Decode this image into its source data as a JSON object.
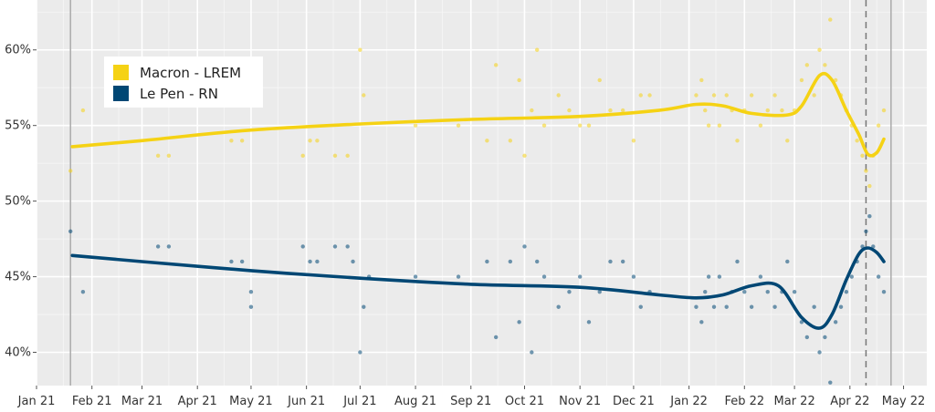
{
  "chart_data": {
    "type": "line",
    "title": "",
    "xlabel": "",
    "ylabel": "",
    "x_ticks": [
      "Jan 21",
      "Feb 21",
      "Mar 21",
      "Apr 21",
      "May 21",
      "Jun 21",
      "Jul 21",
      "Aug 21",
      "Sep 21",
      "Oct 21",
      "Nov 21",
      "Dec 21",
      "Jan 22",
      "Feb 22",
      "Mar 22",
      "Apr 22",
      "May 22"
    ],
    "xlim": [
      "2021-01-01",
      "2022-05-14"
    ],
    "y_ticks": [
      "40%",
      "45%",
      "50%",
      "55%",
      "60%"
    ],
    "ylim": [
      37.8,
      63.3
    ],
    "grid": true,
    "legend_position": "top-left",
    "series": [
      {
        "name": "Macron - LREM",
        "color": "#F5D214",
        "trend": [
          [
            "2021-01-21",
            53.6
          ],
          [
            "2021-03-01",
            54.0
          ],
          [
            "2021-05-01",
            54.7
          ],
          [
            "2021-07-01",
            55.1
          ],
          [
            "2021-09-01",
            55.4
          ],
          [
            "2021-11-01",
            55.6
          ],
          [
            "2021-12-15",
            56.0
          ],
          [
            "2022-01-05",
            56.4
          ],
          [
            "2022-01-20",
            56.3
          ],
          [
            "2022-02-05",
            55.8
          ],
          [
            "2022-02-25",
            55.7
          ],
          [
            "2022-03-05",
            56.3
          ],
          [
            "2022-03-15",
            58.3
          ],
          [
            "2022-03-22",
            58.0
          ],
          [
            "2022-03-30",
            56.0
          ],
          [
            "2022-04-06",
            54.4
          ],
          [
            "2022-04-11",
            53.1
          ],
          [
            "2022-04-16",
            53.2
          ],
          [
            "2022-04-20",
            54.1
          ]
        ],
        "polls": [
          [
            "2021-01-20",
            52
          ],
          [
            "2021-01-27",
            56
          ],
          [
            "2021-03-10",
            53
          ],
          [
            "2021-03-16",
            53
          ],
          [
            "2021-04-20",
            54
          ],
          [
            "2021-04-26",
            54
          ],
          [
            "2021-05-30",
            53
          ],
          [
            "2021-06-03",
            54
          ],
          [
            "2021-06-07",
            54
          ],
          [
            "2021-06-17",
            53
          ],
          [
            "2021-06-24",
            53
          ],
          [
            "2021-07-01",
            60
          ],
          [
            "2021-07-03",
            57
          ],
          [
            "2021-08-01",
            55
          ],
          [
            "2021-08-25",
            55
          ],
          [
            "2021-09-10",
            54
          ],
          [
            "2021-09-15",
            59
          ],
          [
            "2021-09-23",
            54
          ],
          [
            "2021-09-28",
            58
          ],
          [
            "2021-10-01",
            53
          ],
          [
            "2021-10-05",
            56
          ],
          [
            "2021-10-08",
            60
          ],
          [
            "2021-10-12",
            55
          ],
          [
            "2021-10-20",
            57
          ],
          [
            "2021-10-26",
            56
          ],
          [
            "2021-11-01",
            55
          ],
          [
            "2021-11-06",
            55
          ],
          [
            "2021-11-12",
            58
          ],
          [
            "2021-11-18",
            56
          ],
          [
            "2021-11-25",
            56
          ],
          [
            "2021-12-01",
            54
          ],
          [
            "2021-12-05",
            57
          ],
          [
            "2021-12-10",
            57
          ],
          [
            "2022-01-05",
            57
          ],
          [
            "2022-01-08",
            58
          ],
          [
            "2022-01-10",
            56
          ],
          [
            "2022-01-12",
            55
          ],
          [
            "2022-01-15",
            57
          ],
          [
            "2022-01-18",
            55
          ],
          [
            "2022-01-22",
            57
          ],
          [
            "2022-01-25",
            56
          ],
          [
            "2022-01-28",
            54
          ],
          [
            "2022-02-01",
            56
          ],
          [
            "2022-02-05",
            57
          ],
          [
            "2022-02-10",
            55
          ],
          [
            "2022-02-14",
            56
          ],
          [
            "2022-02-18",
            57
          ],
          [
            "2022-02-22",
            56
          ],
          [
            "2022-02-25",
            54
          ],
          [
            "2022-03-01",
            56
          ],
          [
            "2022-03-05",
            58
          ],
          [
            "2022-03-08",
            59
          ],
          [
            "2022-03-12",
            57
          ],
          [
            "2022-03-15",
            60
          ],
          [
            "2022-03-18",
            59
          ],
          [
            "2022-03-21",
            62
          ],
          [
            "2022-03-24",
            58
          ],
          [
            "2022-03-27",
            57
          ],
          [
            "2022-03-30",
            56
          ],
          [
            "2022-04-02",
            55
          ],
          [
            "2022-04-05",
            54
          ],
          [
            "2022-04-08",
            53
          ],
          [
            "2022-04-10",
            52
          ],
          [
            "2022-04-12",
            51
          ],
          [
            "2022-04-14",
            53
          ],
          [
            "2022-04-17",
            55
          ],
          [
            "2022-04-20",
            56
          ]
        ]
      },
      {
        "name": "Le Pen - RN",
        "color": "#004774",
        "trend": [
          [
            "2021-01-21",
            46.4
          ],
          [
            "2021-03-01",
            46.0
          ],
          [
            "2021-05-01",
            45.4
          ],
          [
            "2021-07-01",
            44.9
          ],
          [
            "2021-09-01",
            44.5
          ],
          [
            "2021-11-01",
            44.3
          ],
          [
            "2021-12-15",
            43.8
          ],
          [
            "2022-01-05",
            43.6
          ],
          [
            "2022-01-20",
            43.8
          ],
          [
            "2022-02-05",
            44.4
          ],
          [
            "2022-02-20",
            44.4
          ],
          [
            "2022-03-05",
            42.3
          ],
          [
            "2022-03-15",
            41.6
          ],
          [
            "2022-03-22",
            42.5
          ],
          [
            "2022-03-30",
            44.8
          ],
          [
            "2022-04-06",
            46.5
          ],
          [
            "2022-04-11",
            46.9
          ],
          [
            "2022-04-16",
            46.6
          ],
          [
            "2022-04-20",
            46.0
          ]
        ],
        "polls": [
          [
            "2021-01-20",
            48
          ],
          [
            "2021-01-27",
            44
          ],
          [
            "2021-03-10",
            47
          ],
          [
            "2021-03-16",
            47
          ],
          [
            "2021-04-20",
            46
          ],
          [
            "2021-04-26",
            46
          ],
          [
            "2021-05-01",
            44
          ],
          [
            "2021-05-01",
            43
          ],
          [
            "2021-05-30",
            47
          ],
          [
            "2021-06-03",
            46
          ],
          [
            "2021-06-07",
            46
          ],
          [
            "2021-06-17",
            47
          ],
          [
            "2021-06-24",
            47
          ],
          [
            "2021-06-27",
            46
          ],
          [
            "2021-07-01",
            40
          ],
          [
            "2021-07-03",
            43
          ],
          [
            "2021-07-06",
            45
          ],
          [
            "2021-08-01",
            45
          ],
          [
            "2021-08-25",
            45
          ],
          [
            "2021-09-10",
            46
          ],
          [
            "2021-09-15",
            41
          ],
          [
            "2021-09-23",
            46
          ],
          [
            "2021-09-28",
            42
          ],
          [
            "2021-10-01",
            47
          ],
          [
            "2021-10-05",
            40
          ],
          [
            "2021-10-08",
            46
          ],
          [
            "2021-10-12",
            45
          ],
          [
            "2021-10-20",
            43
          ],
          [
            "2021-10-26",
            44
          ],
          [
            "2021-11-01",
            45
          ],
          [
            "2021-11-06",
            42
          ],
          [
            "2021-11-12",
            44
          ],
          [
            "2021-11-18",
            46
          ],
          [
            "2021-11-25",
            46
          ],
          [
            "2021-12-01",
            45
          ],
          [
            "2021-12-05",
            43
          ],
          [
            "2021-12-10",
            44
          ],
          [
            "2022-01-05",
            43
          ],
          [
            "2022-01-08",
            42
          ],
          [
            "2022-01-10",
            44
          ],
          [
            "2022-01-12",
            45
          ],
          [
            "2022-01-15",
            43
          ],
          [
            "2022-01-18",
            45
          ],
          [
            "2022-01-22",
            43
          ],
          [
            "2022-01-25",
            44
          ],
          [
            "2022-01-28",
            46
          ],
          [
            "2022-02-01",
            44
          ],
          [
            "2022-02-05",
            43
          ],
          [
            "2022-02-10",
            45
          ],
          [
            "2022-02-14",
            44
          ],
          [
            "2022-02-18",
            43
          ],
          [
            "2022-02-22",
            44
          ],
          [
            "2022-02-25",
            46
          ],
          [
            "2022-03-01",
            44
          ],
          [
            "2022-03-05",
            42
          ],
          [
            "2022-03-08",
            41
          ],
          [
            "2022-03-12",
            43
          ],
          [
            "2022-03-15",
            40
          ],
          [
            "2022-03-18",
            41
          ],
          [
            "2022-03-21",
            38
          ],
          [
            "2022-03-24",
            42
          ],
          [
            "2022-03-27",
            43
          ],
          [
            "2022-03-30",
            44
          ],
          [
            "2022-04-02",
            45
          ],
          [
            "2022-04-05",
            46
          ],
          [
            "2022-04-08",
            47
          ],
          [
            "2022-04-10",
            48
          ],
          [
            "2022-04-12",
            49
          ],
          [
            "2022-04-14",
            47
          ],
          [
            "2022-04-17",
            45
          ],
          [
            "2022-04-20",
            44
          ]
        ]
      }
    ],
    "reference_lines": [
      {
        "x": "2021-01-20",
        "style": "solid",
        "color": "#aaaaaa"
      },
      {
        "x": "2022-04-10",
        "style": "dashed",
        "color": "#777777"
      },
      {
        "x": "2022-04-24",
        "style": "solid",
        "color": "#aaaaaa"
      }
    ]
  }
}
